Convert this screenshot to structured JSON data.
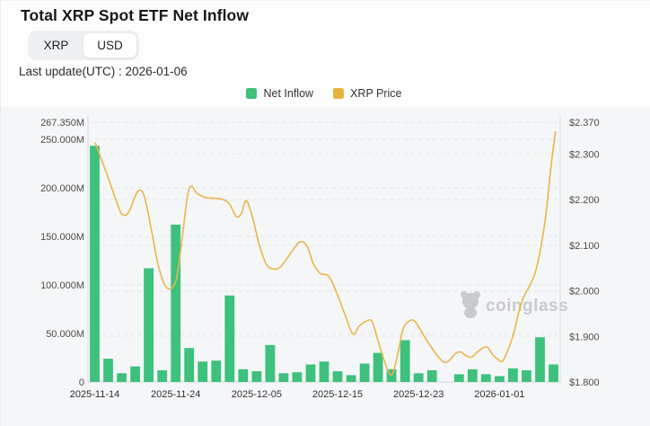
{
  "header": {
    "title": "Total XRP Spot ETF Net Inflow",
    "toggle": {
      "options": [
        "XRP",
        "USD"
      ],
      "selected": "USD"
    },
    "last_update": "Last update(UTC) : 2026-01-06"
  },
  "legend": {
    "items": [
      {
        "label": "Net Inflow",
        "color": "#3dc17c"
      },
      {
        "label": "XRP Price",
        "color": "#e9b23f"
      }
    ]
  },
  "watermark": {
    "text": "coinglass",
    "icon": "coinglass-bear-icon",
    "color": "#c9cacc"
  },
  "colors": {
    "bar": "#3dc17c",
    "line": "#ecb44d",
    "plot_bg": "#f5f6f7",
    "grid": "#e4e4e8",
    "axis_line": "#dcdce0",
    "axis_text": "#4c4c4c",
    "x_text": "#2e2f31"
  },
  "chart_data": {
    "type": "combo",
    "title": "Total XRP Spot ETF Net Inflow",
    "num_slots": 35,
    "series": [
      {
        "name": "Net Inflow",
        "type": "bar",
        "unit": "million USD",
        "values": [
          243,
          24,
          9,
          16,
          117,
          12,
          162,
          35,
          21,
          22,
          89,
          13,
          11,
          38,
          9,
          10,
          18,
          21,
          11,
          7,
          19,
          30,
          13,
          43,
          9,
          12,
          0,
          8,
          13,
          8,
          6,
          14,
          12,
          46,
          18
        ]
      },
      {
        "name": "XRP Price",
        "type": "line",
        "unit": "USD",
        "points": [
          [
            0.015,
            2.326
          ],
          [
            0.028,
            2.29
          ],
          [
            0.044,
            2.245
          ],
          [
            0.059,
            2.2
          ],
          [
            0.072,
            2.168
          ],
          [
            0.086,
            2.172
          ],
          [
            0.101,
            2.21
          ],
          [
            0.11,
            2.221
          ],
          [
            0.12,
            2.205
          ],
          [
            0.135,
            2.13
          ],
          [
            0.148,
            2.06
          ],
          [
            0.163,
            2.012
          ],
          [
            0.177,
            2.006
          ],
          [
            0.188,
            2.03
          ],
          [
            0.2,
            2.12
          ],
          [
            0.211,
            2.21
          ],
          [
            0.219,
            2.23
          ],
          [
            0.23,
            2.215
          ],
          [
            0.249,
            2.205
          ],
          [
            0.268,
            2.203
          ],
          [
            0.287,
            2.2
          ],
          [
            0.3,
            2.19
          ],
          [
            0.314,
            2.163
          ],
          [
            0.325,
            2.17
          ],
          [
            0.335,
            2.198
          ],
          [
            0.348,
            2.163
          ],
          [
            0.363,
            2.1
          ],
          [
            0.378,
            2.058
          ],
          [
            0.392,
            2.048
          ],
          [
            0.407,
            2.052
          ],
          [
            0.422,
            2.072
          ],
          [
            0.437,
            2.094
          ],
          [
            0.45,
            2.108
          ],
          [
            0.464,
            2.098
          ],
          [
            0.477,
            2.06
          ],
          [
            0.492,
            2.038
          ],
          [
            0.508,
            2.034
          ],
          [
            0.521,
            2.01
          ],
          [
            0.534,
            1.976
          ],
          [
            0.547,
            1.94
          ],
          [
            0.561,
            1.905
          ],
          [
            0.574,
            1.922
          ],
          [
            0.587,
            1.932
          ],
          [
            0.601,
            1.934
          ],
          [
            0.612,
            1.898
          ],
          [
            0.624,
            1.858
          ],
          [
            0.635,
            1.825
          ],
          [
            0.645,
            1.818
          ],
          [
            0.656,
            1.862
          ],
          [
            0.667,
            1.915
          ],
          [
            0.679,
            1.933
          ],
          [
            0.69,
            1.935
          ],
          [
            0.702,
            1.918
          ],
          [
            0.715,
            1.895
          ],
          [
            0.728,
            1.875
          ],
          [
            0.741,
            1.856
          ],
          [
            0.755,
            1.843
          ],
          [
            0.766,
            1.848
          ],
          [
            0.778,
            1.862
          ],
          [
            0.789,
            1.866
          ],
          [
            0.8,
            1.858
          ],
          [
            0.812,
            1.854
          ],
          [
            0.823,
            1.864
          ],
          [
            0.835,
            1.874
          ],
          [
            0.846,
            1.876
          ],
          [
            0.857,
            1.86
          ],
          [
            0.869,
            1.849
          ],
          [
            0.878,
            1.846
          ],
          [
            0.89,
            1.872
          ],
          [
            0.901,
            1.905
          ],
          [
            0.912,
            1.952
          ],
          [
            0.924,
            1.99
          ],
          [
            0.935,
            2.01
          ],
          [
            0.947,
            2.04
          ],
          [
            0.958,
            2.09
          ],
          [
            0.97,
            2.17
          ],
          [
            0.979,
            2.26
          ],
          [
            0.985,
            2.31
          ],
          [
            0.99,
            2.35
          ]
        ]
      }
    ],
    "left_axis": {
      "max": 267.35,
      "min": 0,
      "ticks": [
        {
          "value": 267.35,
          "label": "267.350M"
        },
        {
          "value": 250,
          "label": "250.000M"
        },
        {
          "value": 200,
          "label": "200.000M"
        },
        {
          "value": 150,
          "label": "150.000M"
        },
        {
          "value": 100,
          "label": "100.000M"
        },
        {
          "value": 50,
          "label": "50.000M"
        },
        {
          "value": 0,
          "label": "0"
        }
      ]
    },
    "right_axis": {
      "max": 2.37,
      "min": 1.8,
      "ticks": [
        {
          "value": 2.37,
          "label": "$2.370"
        },
        {
          "value": 2.3,
          "label": "$2.300"
        },
        {
          "value": 2.2,
          "label": "$2.200"
        },
        {
          "value": 2.1,
          "label": "$2.100"
        },
        {
          "value": 2.0,
          "label": "$2.000"
        },
        {
          "value": 1.9,
          "label": "$1.900"
        },
        {
          "value": 1.8,
          "label": "$1.800"
        }
      ]
    },
    "x_axis": {
      "labels": [
        "2025-11-14",
        "2025-11-24",
        "2025-12-05",
        "2025-12-15",
        "2025-12-23",
        "2026-01-01"
      ],
      "label_slots": [
        0,
        6,
        12,
        18,
        24,
        30
      ]
    },
    "grid": "dashed",
    "legend_position": "top-center"
  }
}
